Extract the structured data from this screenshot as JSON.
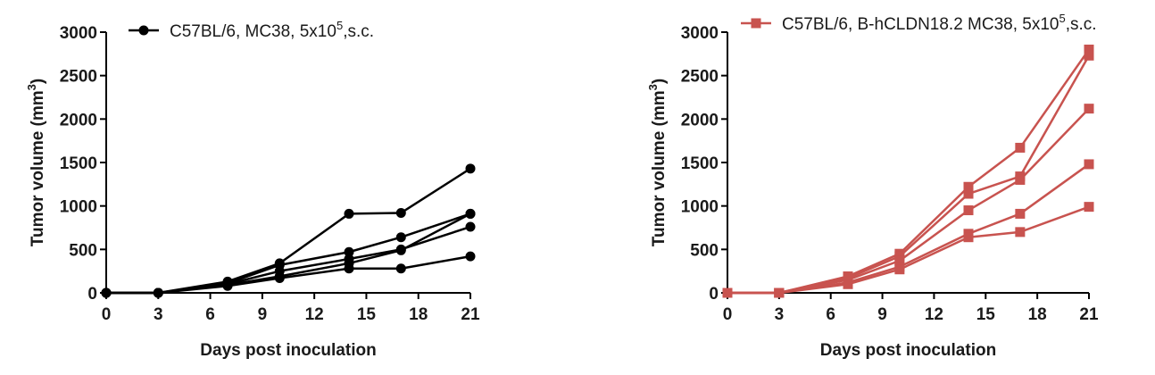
{
  "chart_data": [
    {
      "type": "line",
      "xlabel": "Days post inoculation",
      "ylabel_main": "Tumor volume (mm",
      "ylabel_sup": "3",
      "ylabel_end": ")",
      "xlim": [
        0,
        21
      ],
      "ylim": [
        0,
        3000
      ],
      "xticks": [
        "0",
        "3",
        "6",
        "9",
        "12",
        "15",
        "18",
        "21"
      ],
      "yticks": [
        "0",
        "500",
        "1000",
        "1500",
        "2000",
        "2500",
        "3000"
      ],
      "color": "#000000",
      "marker": "circle",
      "legend": {
        "text_main": "C57BL/6, MC38, 5x10",
        "text_sup": "5",
        "text_end": ",s.c.",
        "position": "top"
      },
      "x": [
        0,
        3,
        7,
        10,
        14,
        17,
        21
      ],
      "series": [
        {
          "values": [
            0,
            0,
            130,
            340,
            910,
            920,
            1430
          ]
        },
        {
          "values": [
            0,
            0,
            110,
            320,
            470,
            640,
            910
          ]
        },
        {
          "values": [
            0,
            0,
            100,
            250,
            390,
            500,
            760
          ]
        },
        {
          "values": [
            0,
            0,
            90,
            190,
            340,
            490,
            910
          ]
        },
        {
          "values": [
            0,
            0,
            80,
            170,
            280,
            280,
            420
          ]
        }
      ]
    },
    {
      "type": "line",
      "xlabel": "Days post inoculation",
      "ylabel_main": "Tumor volume (mm",
      "ylabel_sup": "3",
      "ylabel_end": ")",
      "xlim": [
        0,
        21
      ],
      "ylim": [
        0,
        3000
      ],
      "xticks": [
        "0",
        "3",
        "6",
        "9",
        "12",
        "15",
        "18",
        "21"
      ],
      "yticks": [
        "0",
        "500",
        "1000",
        "1500",
        "2000",
        "2500",
        "3000"
      ],
      "color": "#c8534f",
      "marker": "square",
      "legend": {
        "text_main": "C57BL/6, B-hCLDN18.2 MC38, 5x10",
        "text_sup": "5",
        "text_end": ",s.c.",
        "position": "top"
      },
      "x": [
        0,
        3,
        7,
        10,
        14,
        17,
        21
      ],
      "series": [
        {
          "values": [
            0,
            0,
            190,
            450,
            1220,
            1670,
            2800
          ]
        },
        {
          "values": [
            0,
            0,
            170,
            420,
            1140,
            1340,
            2730
          ]
        },
        {
          "values": [
            0,
            0,
            150,
            370,
            950,
            1300,
            2120
          ]
        },
        {
          "values": [
            0,
            0,
            120,
            300,
            680,
            910,
            1480
          ]
        },
        {
          "values": [
            0,
            0,
            100,
            270,
            640,
            700,
            990
          ]
        }
      ]
    }
  ]
}
